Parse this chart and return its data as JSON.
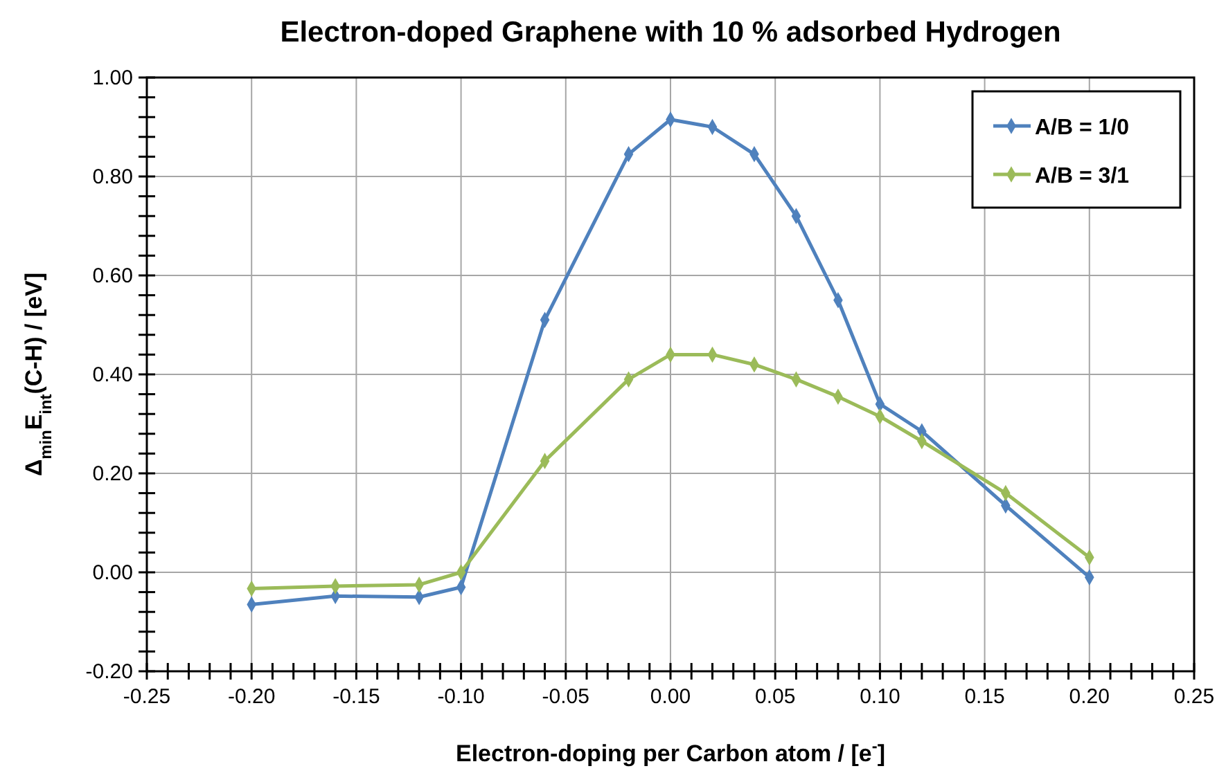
{
  "chart_data": {
    "type": "line",
    "title": "Electron-doped Graphene with 10 % adsorbed Hydrogen",
    "xlabel": "Electron-doping per Carbon atom / [e$^{-}$]",
    "ylabel": "Δ$_{min}$E$_{int}$(C-H) / [eV]",
    "x": [
      -0.2,
      -0.16,
      -0.12,
      -0.1,
      -0.06,
      -0.02,
      0.0,
      0.02,
      0.04,
      0.06,
      0.08,
      0.1,
      0.12,
      0.16,
      0.2
    ],
    "series": [
      {
        "name": "A/B = 1/0",
        "color": "#4f81bd",
        "values": [
          -0.065,
          -0.048,
          -0.05,
          -0.03,
          0.51,
          0.845,
          0.915,
          0.9,
          0.845,
          0.72,
          0.55,
          0.34,
          0.285,
          0.135,
          -0.01
        ]
      },
      {
        "name": "A/B = 3/1",
        "color": "#9bbb59",
        "values": [
          -0.033,
          -0.028,
          -0.025,
          0.0,
          0.225,
          0.39,
          0.44,
          0.44,
          0.42,
          0.39,
          0.355,
          0.315,
          0.265,
          0.16,
          0.03
        ]
      }
    ],
    "xlim": [
      -0.25,
      0.25
    ],
    "xticks": [
      {
        "value": -0.25,
        "label": "-0.25"
      },
      {
        "value": -0.24,
        "label": null
      },
      {
        "value": -0.23,
        "label": null
      },
      {
        "value": -0.22,
        "label": null
      },
      {
        "value": -0.21,
        "label": null
      },
      {
        "value": -0.2,
        "label": "-0.20"
      },
      {
        "value": -0.19,
        "label": null
      },
      {
        "value": -0.18,
        "label": null
      },
      {
        "value": -0.17,
        "label": null
      },
      {
        "value": -0.16,
        "label": null
      },
      {
        "value": -0.15,
        "label": "-0.15"
      },
      {
        "value": -0.14,
        "label": null
      },
      {
        "value": -0.13,
        "label": null
      },
      {
        "value": -0.12,
        "label": null
      },
      {
        "value": -0.11,
        "label": null
      },
      {
        "value": -0.1,
        "label": "-0.10"
      },
      {
        "value": -0.09,
        "label": null
      },
      {
        "value": -0.08,
        "label": null
      },
      {
        "value": -0.07,
        "label": null
      },
      {
        "value": -0.06,
        "label": null
      },
      {
        "value": -0.05,
        "label": "-0.05"
      },
      {
        "value": -0.04,
        "label": null
      },
      {
        "value": -0.03,
        "label": null
      },
      {
        "value": -0.02,
        "label": null
      },
      {
        "value": -0.01,
        "label": null
      },
      {
        "value": 0,
        "label": "0.00"
      },
      {
        "value": 0.01,
        "label": null
      },
      {
        "value": 0.02,
        "label": null
      },
      {
        "value": 0.03,
        "label": null
      },
      {
        "value": 0.04,
        "label": null
      },
      {
        "value": 0.05,
        "label": "0.05"
      },
      {
        "value": 0.06,
        "label": null
      },
      {
        "value": 0.07,
        "label": null
      },
      {
        "value": 0.08,
        "label": null
      },
      {
        "value": 0.09,
        "label": null
      },
      {
        "value": 0.1,
        "label": "0.10"
      },
      {
        "value": 0.11,
        "label": null
      },
      {
        "value": 0.12,
        "label": null
      },
      {
        "value": 0.13,
        "label": null
      },
      {
        "value": 0.14,
        "label": null
      },
      {
        "value": 0.15,
        "label": "0.15"
      },
      {
        "value": 0.16,
        "label": null
      },
      {
        "value": 0.17,
        "label": null
      },
      {
        "value": 0.18,
        "label": null
      },
      {
        "value": 0.19,
        "label": null
      },
      {
        "value": 0.2,
        "label": "0.20"
      },
      {
        "value": 0.21,
        "label": null
      },
      {
        "value": 0.22,
        "label": null
      },
      {
        "value": 0.23,
        "label": null
      },
      {
        "value": 0.24,
        "label": null
      },
      {
        "value": 0.25,
        "label": "0.25"
      }
    ],
    "ylim": [
      -0.2,
      1.0
    ],
    "yticks": [
      {
        "value": -0.2,
        "label": "-0.20"
      },
      {
        "value": -0.16,
        "label": null
      },
      {
        "value": -0.12,
        "label": null
      },
      {
        "value": -0.08,
        "label": null
      },
      {
        "value": -0.04,
        "label": null
      },
      {
        "value": 0,
        "label": "0.00"
      },
      {
        "value": 0.04,
        "label": null
      },
      {
        "value": 0.08,
        "label": null
      },
      {
        "value": 0.12,
        "label": null
      },
      {
        "value": 0.16,
        "label": null
      },
      {
        "value": 0.2,
        "label": "0.20"
      },
      {
        "value": 0.24,
        "label": null
      },
      {
        "value": 0.28,
        "label": null
      },
      {
        "value": 0.32,
        "label": null
      },
      {
        "value": 0.36,
        "label": null
      },
      {
        "value": 0.4,
        "label": "0.40"
      },
      {
        "value": 0.44,
        "label": null
      },
      {
        "value": 0.48,
        "label": null
      },
      {
        "value": 0.52,
        "label": null
      },
      {
        "value": 0.56,
        "label": null
      },
      {
        "value": 0.6,
        "label": "0.60"
      },
      {
        "value": 0.64,
        "label": null
      },
      {
        "value": 0.68,
        "label": null
      },
      {
        "value": 0.72,
        "label": null
      },
      {
        "value": 0.76,
        "label": null
      },
      {
        "value": 0.8,
        "label": "0.80"
      },
      {
        "value": 0.84,
        "label": null
      },
      {
        "value": 0.88,
        "label": null
      },
      {
        "value": 0.92,
        "label": null
      },
      {
        "value": 0.96,
        "label": null
      },
      {
        "value": 1.0,
        "label": "1.00"
      }
    ],
    "grid": true,
    "legend": "top right",
    "marker": "diamond",
    "line_style": "solid"
  }
}
